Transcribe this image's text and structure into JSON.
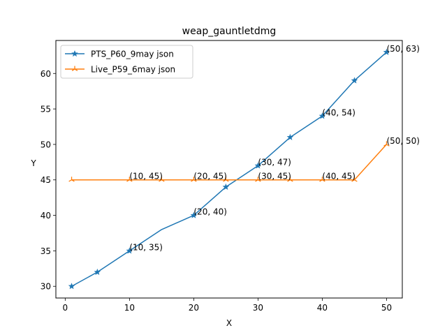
{
  "chart_data": {
    "type": "line",
    "title": "weap_gauntletdmg",
    "xlabel": "X",
    "ylabel": "Y",
    "xlim": [
      -1.45,
      52.45
    ],
    "ylim": [
      28.35,
      64.65
    ],
    "xticks": [
      0,
      10,
      20,
      30,
      40,
      50
    ],
    "yticks": [
      30,
      35,
      40,
      45,
      50,
      55,
      60
    ],
    "grid": false,
    "legend_position": "top-left",
    "series": [
      {
        "name": "PTS_P60_9may json",
        "color": "#1f77b4",
        "marker": "star",
        "x": [
          1,
          5,
          10,
          15,
          20,
          25,
          30,
          35,
          40,
          45,
          50
        ],
        "y": [
          30,
          32,
          35,
          38,
          40,
          44,
          47,
          51,
          54,
          59,
          63
        ],
        "marker_x": [
          1,
          5,
          10,
          20,
          25,
          30,
          35,
          40,
          45,
          50
        ]
      },
      {
        "name": "Live_P59_6may json",
        "color": "#ff7f0e",
        "marker": "tri",
        "x": [
          1,
          10,
          15,
          20,
          25,
          30,
          35,
          40,
          45,
          50
        ],
        "y": [
          45,
          45,
          45,
          45,
          45,
          45,
          45,
          45,
          45,
          50
        ],
        "marker_x": [
          1,
          10,
          15,
          20,
          25,
          30,
          35,
          40,
          45,
          50
        ]
      }
    ],
    "annotations": [
      {
        "text": "(10, 35)",
        "x": 10,
        "y": 35
      },
      {
        "text": "(20, 40)",
        "x": 20,
        "y": 40
      },
      {
        "text": "(30, 47)",
        "x": 30,
        "y": 47
      },
      {
        "text": "(40, 54)",
        "x": 40,
        "y": 54
      },
      {
        "text": "(50, 63)",
        "x": 50,
        "y": 63
      },
      {
        "text": "(10, 45)",
        "x": 10,
        "y": 45
      },
      {
        "text": "(20, 45)",
        "x": 20,
        "y": 45
      },
      {
        "text": "(30, 45)",
        "x": 30,
        "y": 45
      },
      {
        "text": "(40, 45)",
        "x": 40,
        "y": 45
      },
      {
        "text": "(50, 50)",
        "x": 50,
        "y": 50
      }
    ]
  }
}
